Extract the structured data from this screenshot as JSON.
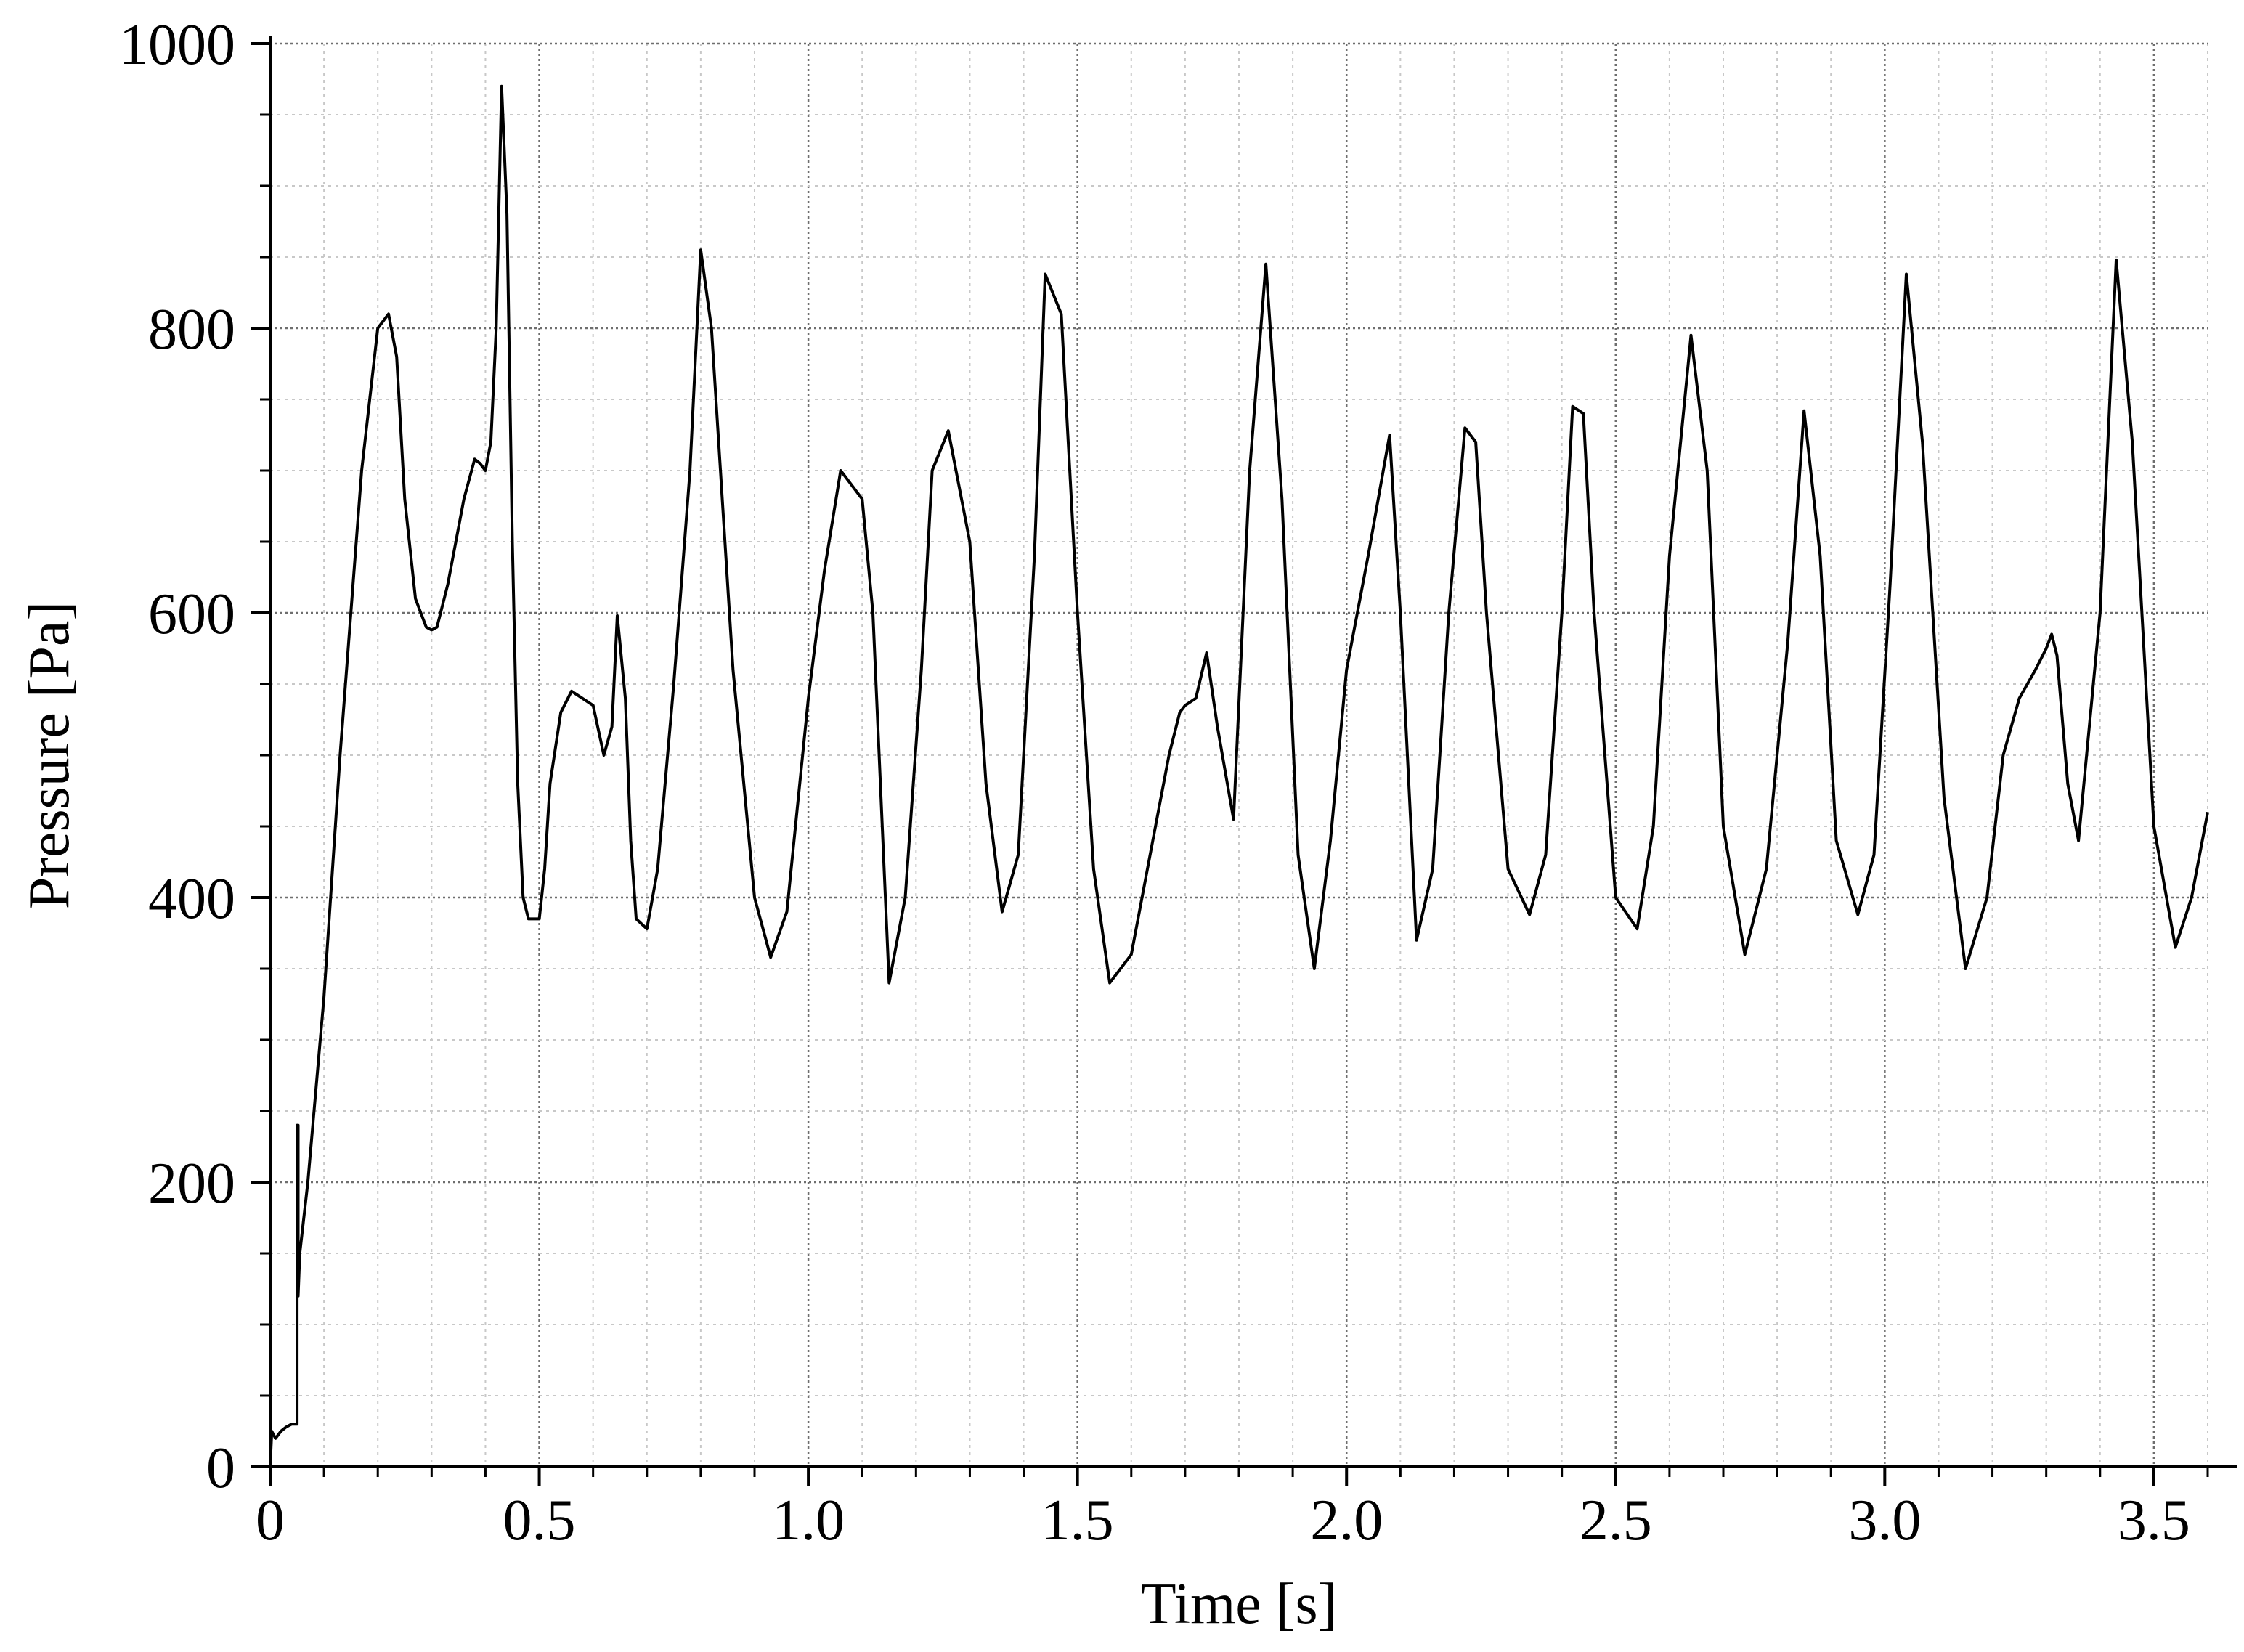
{
  "chart_data": {
    "type": "line",
    "title": "",
    "xlabel": "Time [s]",
    "ylabel": "Pressure [Pa]",
    "xlim": [
      0,
      3.6
    ],
    "ylim": [
      0,
      1000
    ],
    "x_ticks": [
      0,
      0.5,
      1.0,
      1.5,
      2.0,
      2.5,
      3.0,
      3.5
    ],
    "x_tick_labels": [
      "0",
      "0.5",
      "1.0",
      "1.5",
      "2.0",
      "2.5",
      "3.0",
      "3.5"
    ],
    "y_ticks": [
      0,
      200,
      400,
      600,
      800,
      1000
    ],
    "y_tick_labels": [
      "0",
      "200",
      "400",
      "600",
      "800",
      "1000"
    ],
    "x_minor_step": 0.1,
    "y_minor_step": 50,
    "grid": true,
    "line_color": "#000000",
    "series": [
      {
        "x": [
          0.0,
          0.003,
          0.01,
          0.02,
          0.03,
          0.04,
          0.05,
          0.05,
          0.052,
          0.052,
          0.055,
          0.07,
          0.1,
          0.13,
          0.17,
          0.2,
          0.22,
          0.235,
          0.25,
          0.27,
          0.29,
          0.3,
          0.31,
          0.33,
          0.36,
          0.38,
          0.39,
          0.4,
          0.41,
          0.42,
          0.43,
          0.44,
          0.45,
          0.46,
          0.47,
          0.48,
          0.5,
          0.51,
          0.52,
          0.54,
          0.56,
          0.58,
          0.6,
          0.62,
          0.635,
          0.645,
          0.66,
          0.67,
          0.68,
          0.7,
          0.72,
          0.75,
          0.78,
          0.8,
          0.82,
          0.86,
          0.9,
          0.93,
          0.96,
          1.0,
          1.03,
          1.06,
          1.08,
          1.1,
          1.12,
          1.15,
          1.18,
          1.21,
          1.23,
          1.26,
          1.3,
          1.33,
          1.36,
          1.39,
          1.42,
          1.44,
          1.47,
          1.5,
          1.53,
          1.56,
          1.6,
          1.64,
          1.67,
          1.69,
          1.7,
          1.72,
          1.74,
          1.76,
          1.79,
          1.82,
          1.85,
          1.88,
          1.91,
          1.94,
          1.97,
          2.0,
          2.04,
          2.08,
          2.1,
          2.13,
          2.16,
          2.19,
          2.22,
          2.24,
          2.26,
          2.3,
          2.34,
          2.37,
          2.4,
          2.42,
          2.44,
          2.46,
          2.5,
          2.54,
          2.57,
          2.6,
          2.64,
          2.67,
          2.7,
          2.74,
          2.78,
          2.82,
          2.85,
          2.88,
          2.91,
          2.95,
          2.98,
          3.01,
          3.04,
          3.07,
          3.11,
          3.15,
          3.19,
          3.22,
          3.25,
          3.28,
          3.3,
          3.31,
          3.32,
          3.34,
          3.36,
          3.4,
          3.43,
          3.46,
          3.5,
          3.54,
          3.57,
          3.6
        ],
        "y": [
          0,
          25,
          20,
          25,
          28,
          30,
          30,
          240,
          240,
          120,
          150,
          200,
          330,
          500,
          700,
          800,
          810,
          780,
          680,
          610,
          590,
          588,
          590,
          620,
          680,
          708,
          705,
          700,
          720,
          800,
          970,
          880,
          650,
          480,
          400,
          385,
          385,
          420,
          480,
          530,
          545,
          540,
          535,
          500,
          520,
          598,
          540,
          440,
          385,
          378,
          420,
          550,
          700,
          855,
          800,
          560,
          400,
          358,
          390,
          540,
          630,
          700,
          690,
          680,
          600,
          340,
          400,
          560,
          700,
          728,
          650,
          480,
          390,
          430,
          640,
          838,
          810,
          600,
          420,
          340,
          360,
          440,
          500,
          530,
          535,
          540,
          572,
          520,
          455,
          700,
          845,
          680,
          430,
          350,
          440,
          560,
          640,
          725,
          600,
          370,
          420,
          600,
          730,
          720,
          600,
          420,
          388,
          430,
          600,
          745,
          740,
          600,
          400,
          378,
          450,
          640,
          795,
          700,
          450,
          360,
          420,
          580,
          742,
          640,
          440,
          388,
          430,
          620,
          838,
          720,
          470,
          350,
          400,
          500,
          540,
          560,
          575,
          585,
          570,
          480,
          440,
          600,
          848,
          720,
          450,
          365,
          400,
          460
        ]
      }
    ]
  }
}
